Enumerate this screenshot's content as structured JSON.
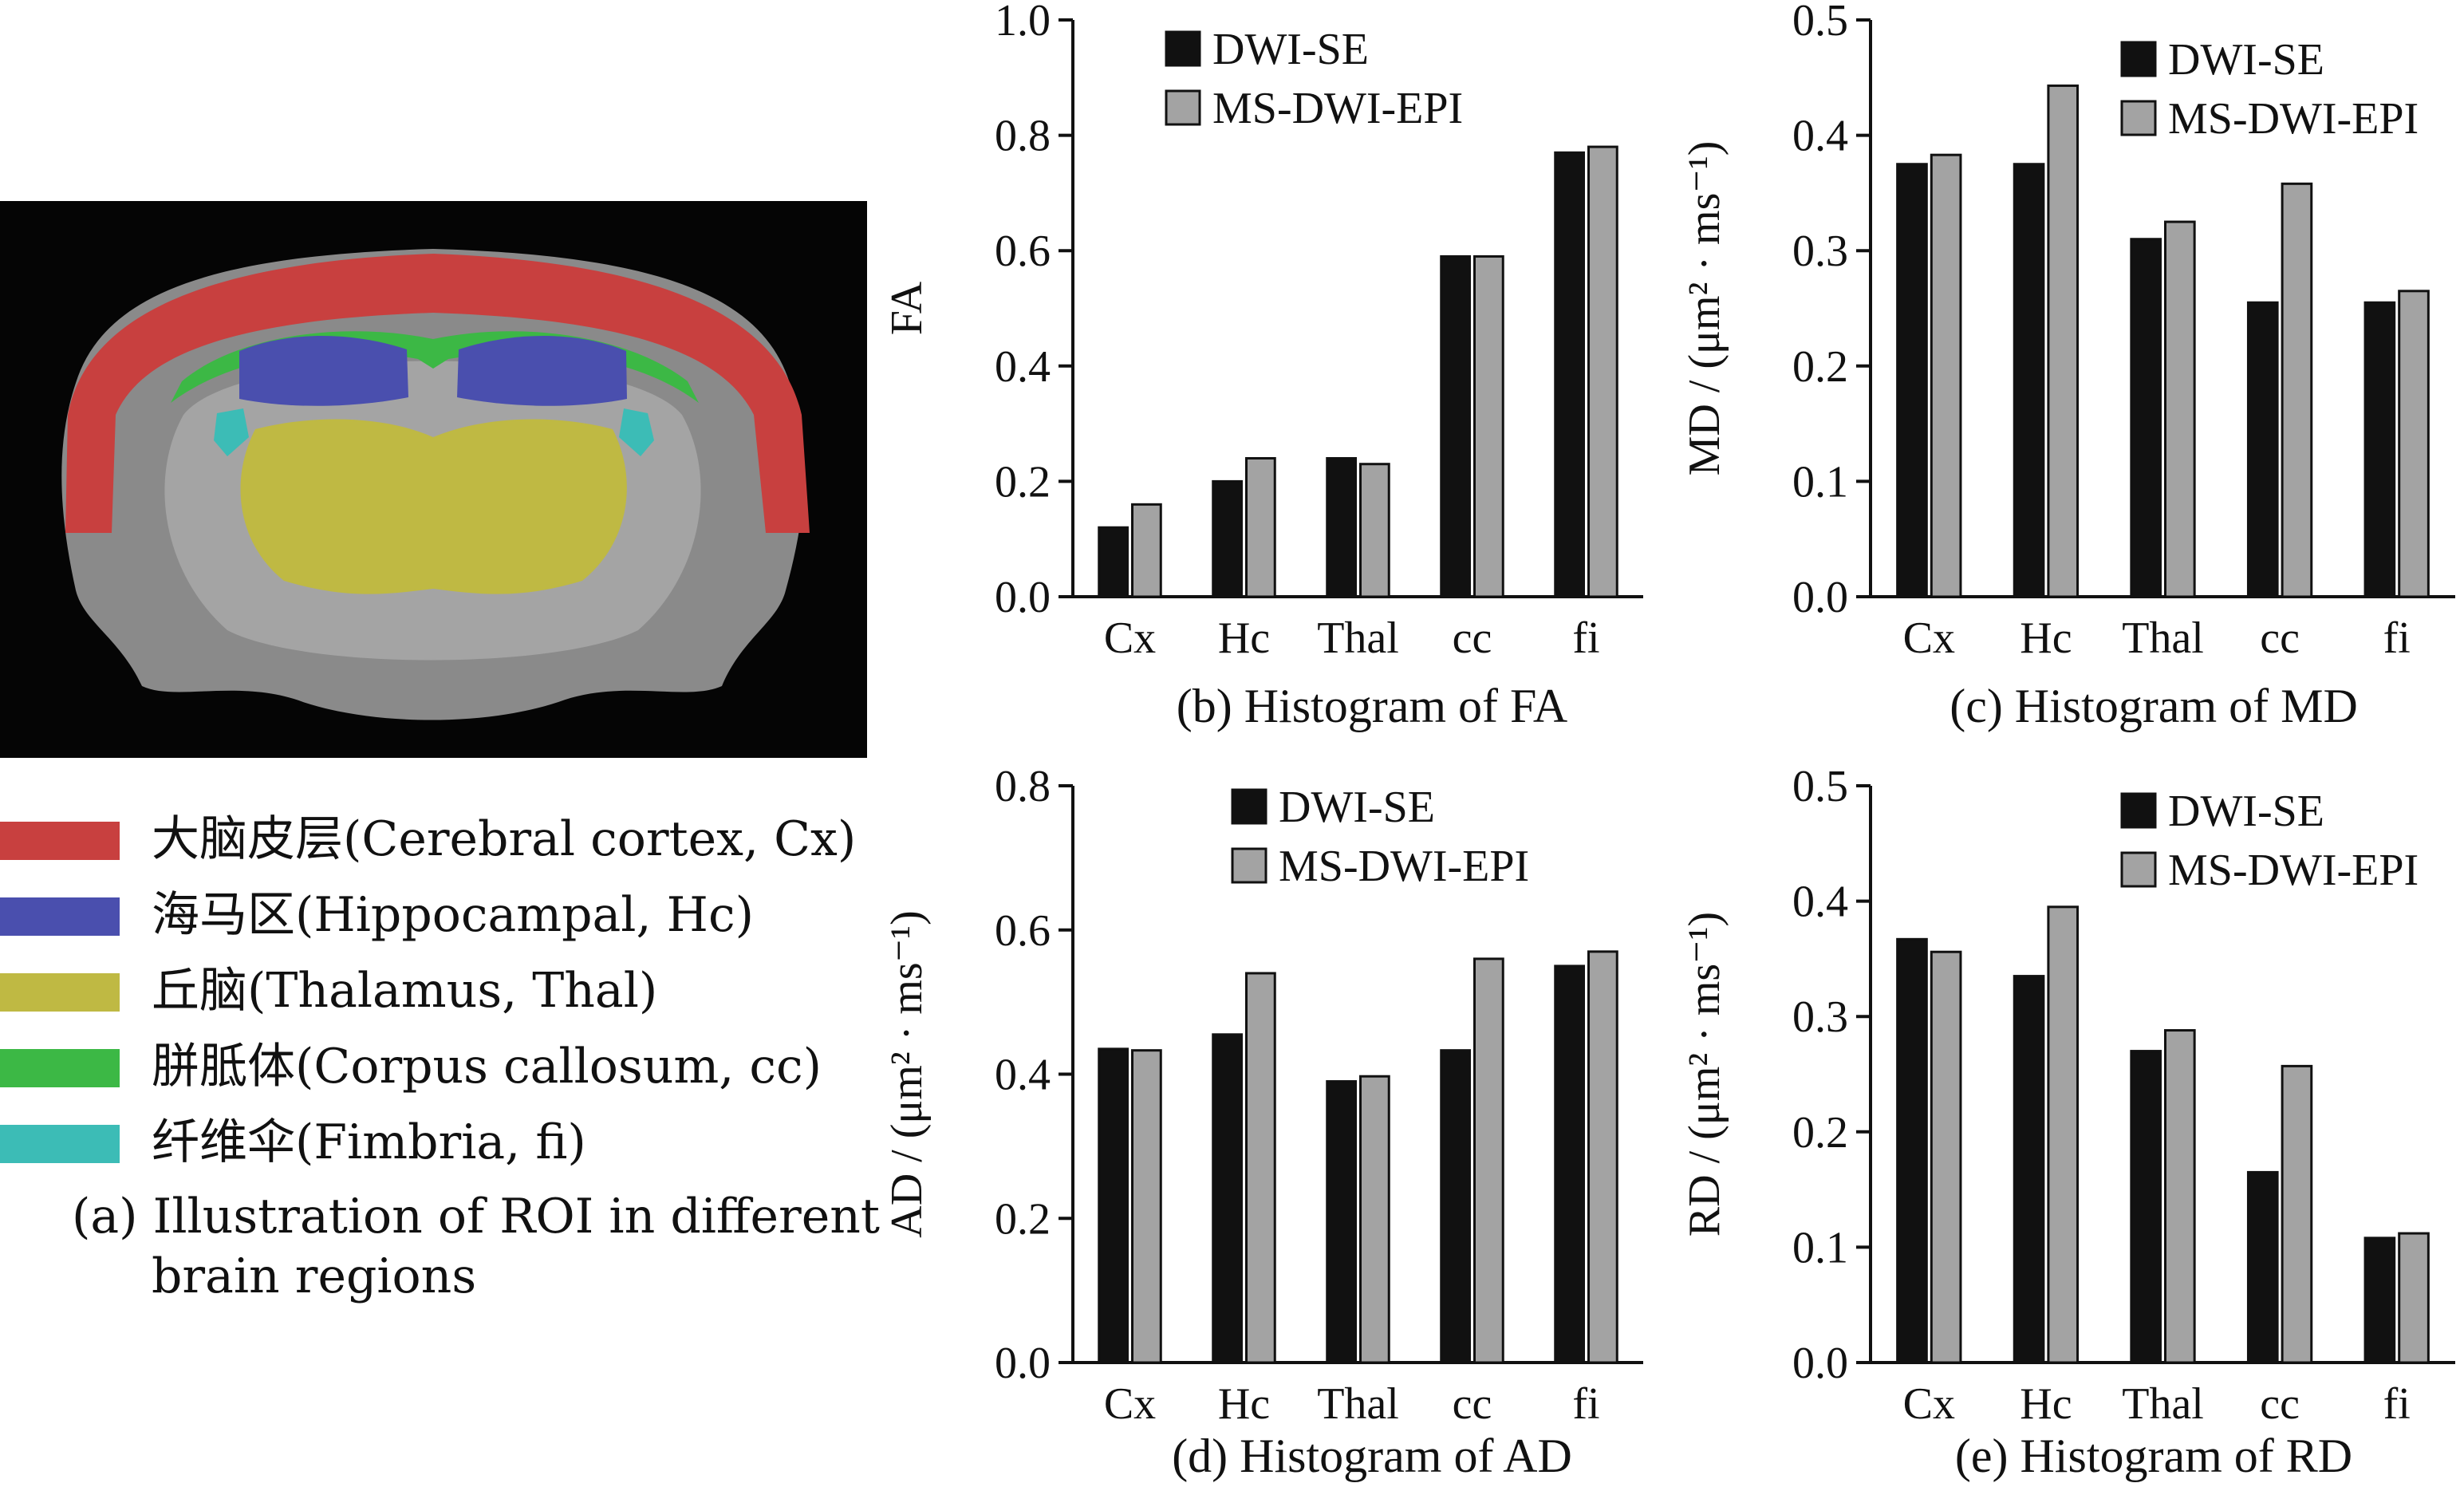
{
  "colors": {
    "bar_series_1": "#111111",
    "bar_series_2": "#a3a3a3",
    "cortex": "#c8403f",
    "hippocampus": "#4a4fae",
    "thalamus": "#bfb943",
    "corpus_callosum": "#3cb845",
    "fimbria": "#3cbcb6"
  },
  "panel_a": {
    "legend": [
      {
        "label": "大脑皮层(Cerebral cortex, Cx)",
        "color": "#c8403f"
      },
      {
        "label": "海马区(Hippocampal, Hc)",
        "color": "#4a4fae"
      },
      {
        "label": "丘脑(Thalamus, Thal)",
        "color": "#bfb943"
      },
      {
        "label": "胼胝体(Corpus callosum, cc)",
        "color": "#3cb845"
      },
      {
        "label": "纤维伞(Fimbria, fi)",
        "color": "#3cbcb6"
      }
    ],
    "caption_line1": "(a) Illustration of ROI in different",
    "caption_line2": "brain regions"
  },
  "chart_data": [
    {
      "id": "fa",
      "type": "bar",
      "caption": "(b)  Histogram of FA",
      "ylabel": "FA",
      "ylim": [
        0,
        1.0
      ],
      "yticks": [
        "0.0",
        "0.2",
        "0.4",
        "0.6",
        "0.8",
        "1.0"
      ],
      "categories": [
        "Cx",
        "Hc",
        "Thal",
        "cc",
        "fi"
      ],
      "legend_position": "top-left",
      "series": [
        {
          "name": "DWI-SE",
          "values": [
            0.12,
            0.2,
            0.24,
            0.59,
            0.77
          ]
        },
        {
          "name": "MS-DWI-EPI",
          "values": [
            0.16,
            0.24,
            0.23,
            0.59,
            0.78
          ]
        }
      ]
    },
    {
      "id": "md",
      "type": "bar",
      "caption": "(c) Histogram of MD",
      "ylabel": "MD / (μm² · ms⁻¹)",
      "ylim": [
        0,
        0.5
      ],
      "yticks": [
        "0.0",
        "0.1",
        "0.2",
        "0.3",
        "0.4",
        "0.5"
      ],
      "categories": [
        "Cx",
        "Hc",
        "Thal",
        "cc",
        "fi"
      ],
      "legend_position": "top-right",
      "series": [
        {
          "name": "DWI-SE",
          "values": [
            0.375,
            0.375,
            0.31,
            0.255,
            0.255
          ]
        },
        {
          "name": "MS-DWI-EPI",
          "values": [
            0.383,
            0.443,
            0.325,
            0.358,
            0.265
          ]
        }
      ]
    },
    {
      "id": "ad",
      "type": "bar",
      "caption": "(d) Histogram of AD",
      "ylabel": "AD / (μm² · ms⁻¹)",
      "ylim": [
        0,
        0.8
      ],
      "yticks": [
        "0.0",
        "0.2",
        "0.4",
        "0.6",
        "0.8"
      ],
      "categories": [
        "Cx",
        "Hc",
        "Thal",
        "cc",
        "fi"
      ],
      "legend_position": "top-right",
      "series": [
        {
          "name": "DWI-SE",
          "values": [
            0.435,
            0.455,
            0.39,
            0.433,
            0.55
          ]
        },
        {
          "name": "MS-DWI-EPI",
          "values": [
            0.433,
            0.54,
            0.397,
            0.56,
            0.57
          ]
        }
      ]
    },
    {
      "id": "rd",
      "type": "bar",
      "caption": "(e) Histogram of RD",
      "ylabel": "RD / (μm² · ms⁻¹)",
      "ylim": [
        0,
        0.5
      ],
      "yticks": [
        "0.0",
        "0.1",
        "0.2",
        "0.3",
        "0.4",
        "0.5"
      ],
      "categories": [
        "Cx",
        "Hc",
        "Thal",
        "cc",
        "fi"
      ],
      "legend_position": "top-right",
      "series": [
        {
          "name": "DWI-SE",
          "values": [
            0.367,
            0.335,
            0.27,
            0.165,
            0.108
          ]
        },
        {
          "name": "MS-DWI-EPI",
          "values": [
            0.356,
            0.395,
            0.288,
            0.257,
            0.112
          ]
        }
      ]
    }
  ]
}
